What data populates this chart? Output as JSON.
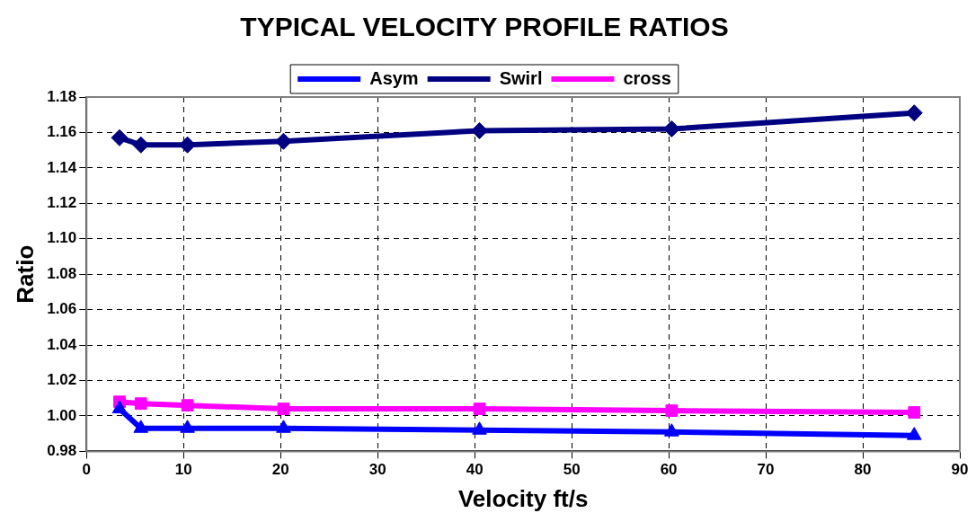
{
  "chart_data": {
    "type": "line",
    "title": "TYPICAL VELOCITY PROFILE RATIOS",
    "xlabel": "Velocity ft/s",
    "ylabel": "Ratio",
    "x": [
      3.4,
      5.6,
      10.4,
      20.3,
      40.5,
      60.3,
      85.3
    ],
    "series": [
      {
        "name": "Asym",
        "color": "#0000ff",
        "marker": "triangle",
        "values": [
          1.004,
          0.993,
          0.993,
          0.993,
          0.992,
          0.991,
          0.989
        ]
      },
      {
        "name": "Swirl",
        "color": "#000080",
        "marker": "diamond",
        "values": [
          1.157,
          1.153,
          1.153,
          1.155,
          1.161,
          1.162,
          1.171
        ]
      },
      {
        "name": "cross",
        "color": "#ff00ff",
        "marker": "square",
        "values": [
          1.008,
          1.007,
          1.006,
          1.004,
          1.004,
          1.003,
          1.002
        ]
      }
    ],
    "xlim": [
      0,
      90
    ],
    "xticks": [
      0,
      10,
      20,
      30,
      40,
      50,
      60,
      70,
      80,
      90
    ],
    "ylim": [
      0.98,
      1.18
    ],
    "yticks": [
      {
        "value": 0.98,
        "label": "0.98"
      },
      {
        "value": 1.0,
        "label": "1.00"
      },
      {
        "value": 1.02,
        "label": "1.02"
      },
      {
        "value": 1.04,
        "label": "1.04"
      },
      {
        "value": 1.06,
        "label": "1.06"
      },
      {
        "value": 1.08,
        "label": "1.08"
      },
      {
        "value": 1.1,
        "label": "1.10"
      },
      {
        "value": 1.12,
        "label": "1.12"
      },
      {
        "value": 1.14,
        "label": "1.14"
      },
      {
        "value": 1.16,
        "label": "1.16"
      },
      {
        "value": 1.18,
        "label": "1.18"
      }
    ],
    "grid": true,
    "legend": "top",
    "line_style": "solid"
  }
}
